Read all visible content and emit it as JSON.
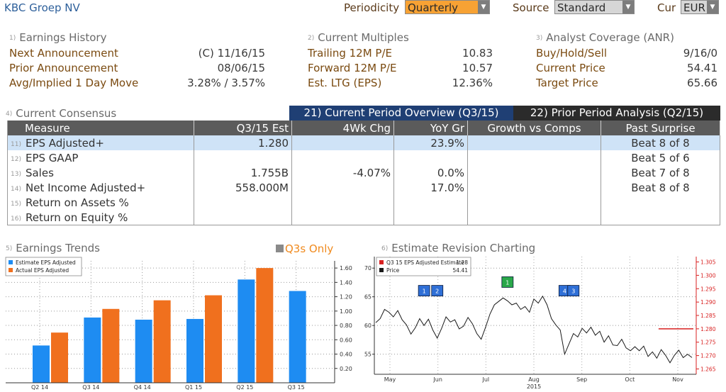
{
  "app_title": "KBC Groep NV",
  "controls": {
    "periodicity_label": "Periodicity",
    "periodicity_value": "Quarterly",
    "source_label": "Source",
    "source_value": "Standard",
    "cur_label": "Cur",
    "cur_value": "EUR"
  },
  "sections": {
    "earnings_history": {
      "num": "1)",
      "title": "Earnings History",
      "rows": [
        {
          "label": "Next Announcement",
          "value": "(C)  11/16/15"
        },
        {
          "label": "Prior Announcement",
          "value": "08/06/15"
        },
        {
          "label": "Avg/Implied 1 Day Move",
          "value": "3.28% / 3.57%"
        }
      ]
    },
    "current_multiples": {
      "num": "2)",
      "title": "Current Multiples",
      "rows": [
        {
          "label": "Trailing 12M P/E",
          "value": "10.83"
        },
        {
          "label": "Forward 12M P/E",
          "value": "10.57"
        },
        {
          "label": "Est. LTG (EPS)",
          "value": "12.36%"
        }
      ]
    },
    "analyst_coverage": {
      "num": "3)",
      "title": "Analyst Coverage (ANR)",
      "rows": [
        {
          "label": "Buy/Hold/Sell",
          "value": "9/16/0"
        },
        {
          "label": "Current Price",
          "value": "54.41"
        },
        {
          "label": "Target Price",
          "value": "65.66"
        }
      ]
    }
  },
  "consensus": {
    "num": "4)",
    "title": "Current Consensus",
    "tab_current": "21) Current Period Overview (Q3/15)",
    "tab_prior": "22) Prior Period Analysis (Q2/15)",
    "headers": [
      "Measure",
      "Q3/15 Est",
      "4Wk Chg",
      "YoY Gr",
      "Growth vs Comps",
      "Past Surprise"
    ],
    "rows": [
      {
        "num": "11)",
        "measure": "EPS Adjusted+",
        "est": "1.280",
        "chg": "",
        "yoy": "23.9%",
        "comps": "",
        "surprise": "Beat 8 of 8"
      },
      {
        "num": "12)",
        "measure": "EPS GAAP",
        "est": "",
        "chg": "",
        "yoy": "",
        "comps": "",
        "surprise": "Beat 5 of 6"
      },
      {
        "num": "13)",
        "measure": "Sales",
        "est": "1.755B",
        "chg": "-4.07%",
        "yoy": "0.0%",
        "comps": "",
        "surprise": "Beat 7 of 8"
      },
      {
        "num": "14)",
        "measure": "Net Income Adjusted+",
        "est": "558.000M",
        "chg": "",
        "yoy": "17.0%",
        "comps": "",
        "surprise": "Beat 8 of 8"
      },
      {
        "num": "15)",
        "measure": "Return on Assets %",
        "est": "",
        "chg": "",
        "yoy": "",
        "comps": "",
        "surprise": ""
      },
      {
        "num": "16)",
        "measure": "Return on Equity %",
        "est": "",
        "chg": "",
        "yoy": "",
        "comps": "",
        "surprise": ""
      }
    ]
  },
  "earnings_trends": {
    "num": "5)",
    "title": "Earnings Trends",
    "checkbox_label": "Q3s Only"
  },
  "estimate_revision": {
    "num": "6)",
    "title": "Estimate Revision Charting"
  },
  "colors": {
    "estimate_bar": "#1e8cf2",
    "actual_bar": "#f0701e",
    "price_line": "#1a1a1a",
    "estimate_line": "#d82020",
    "marker_blue": "#2f6fd6",
    "marker_green": "#2aa84a",
    "tab_active": "#1f3f74",
    "tab_inactive": "#2b2b2b",
    "dropdown_bg": "#f7a234"
  },
  "chart_data": [
    {
      "type": "bar",
      "categories": [
        "Q2 14",
        "Q3 14",
        "Q4 14",
        "Q1 15",
        "Q2 15",
        "Q3 15"
      ],
      "series": [
        {
          "name": "Estimate EPS Adjusted",
          "values": [
            0.52,
            0.91,
            0.88,
            0.89,
            1.44,
            1.28
          ]
        },
        {
          "name": "Actual EPS Adjusted",
          "values": [
            0.7,
            1.03,
            1.15,
            1.22,
            1.6,
            null
          ]
        }
      ],
      "ylim": [
        0,
        1.7
      ],
      "yticks": [
        "0.20",
        "0.40",
        "0.60",
        "0.80",
        "1.00",
        "1.20",
        "1.40",
        "1.60"
      ],
      "legend": "top-left",
      "grid": true
    },
    {
      "type": "line",
      "x_labels": [
        "May",
        "Jun",
        "Jul",
        "Aug",
        "Sep",
        "Oct",
        "Nov"
      ],
      "x_sublabel": "2015",
      "left_axis": {
        "ticks": [
          "55",
          "60",
          "65",
          "70"
        ],
        "ylim": [
          51.5,
          72
        ]
      },
      "right_axis": {
        "ticks": [
          "1.265",
          "1.270",
          "1.275",
          "1.280",
          "1.285",
          "1.290",
          "1.295",
          "1.300",
          "1.305"
        ],
        "ylim": [
          1.263,
          1.307
        ]
      },
      "legend": {
        "estimate_label": "Q3 15 EPS Adjusted Estimate",
        "estimate_value": "1.28",
        "price_label": "Price",
        "price_value": "54.41"
      },
      "price_series": [
        60.5,
        61.2,
        62.8,
        62.3,
        61.5,
        62.6,
        61.0,
        60.1,
        58.5,
        59.6,
        61.2,
        60.0,
        61.1,
        59.2,
        57.8,
        59.5,
        61.5,
        60.6,
        61.0,
        59.4,
        59.9,
        61.4,
        60.3,
        58.6,
        57.6,
        59.7,
        62.0,
        63.6,
        64.2,
        64.8,
        64.3,
        63.6,
        63.9,
        62.8,
        63.3,
        62.3,
        64.6,
        63.9,
        65.1,
        63.6,
        61.2,
        60.1,
        59.2,
        55.0,
        56.8,
        58.6,
        58.0,
        59.5,
        58.7,
        59.7,
        58.3,
        59.0,
        57.1,
        58.2,
        56.6,
        56.5,
        57.6,
        56.1,
        55.6,
        56.3,
        55.6,
        56.4,
        54.6,
        55.4,
        54.3,
        55.8,
        54.8,
        53.5,
        54.8,
        55.7,
        54.4,
        55.0,
        54.41
      ],
      "estimate_series": {
        "from_index": 56,
        "value": 1.28
      },
      "markers": [
        {
          "label": "1",
          "color": "blue",
          "index": 11
        },
        {
          "label": "2",
          "color": "blue",
          "index": 14
        },
        {
          "label": "1",
          "color": "green",
          "index": 30
        },
        {
          "label": "4",
          "color": "blue",
          "index": 43
        },
        {
          "label": "3",
          "color": "blue",
          "index": 45
        }
      ]
    }
  ]
}
